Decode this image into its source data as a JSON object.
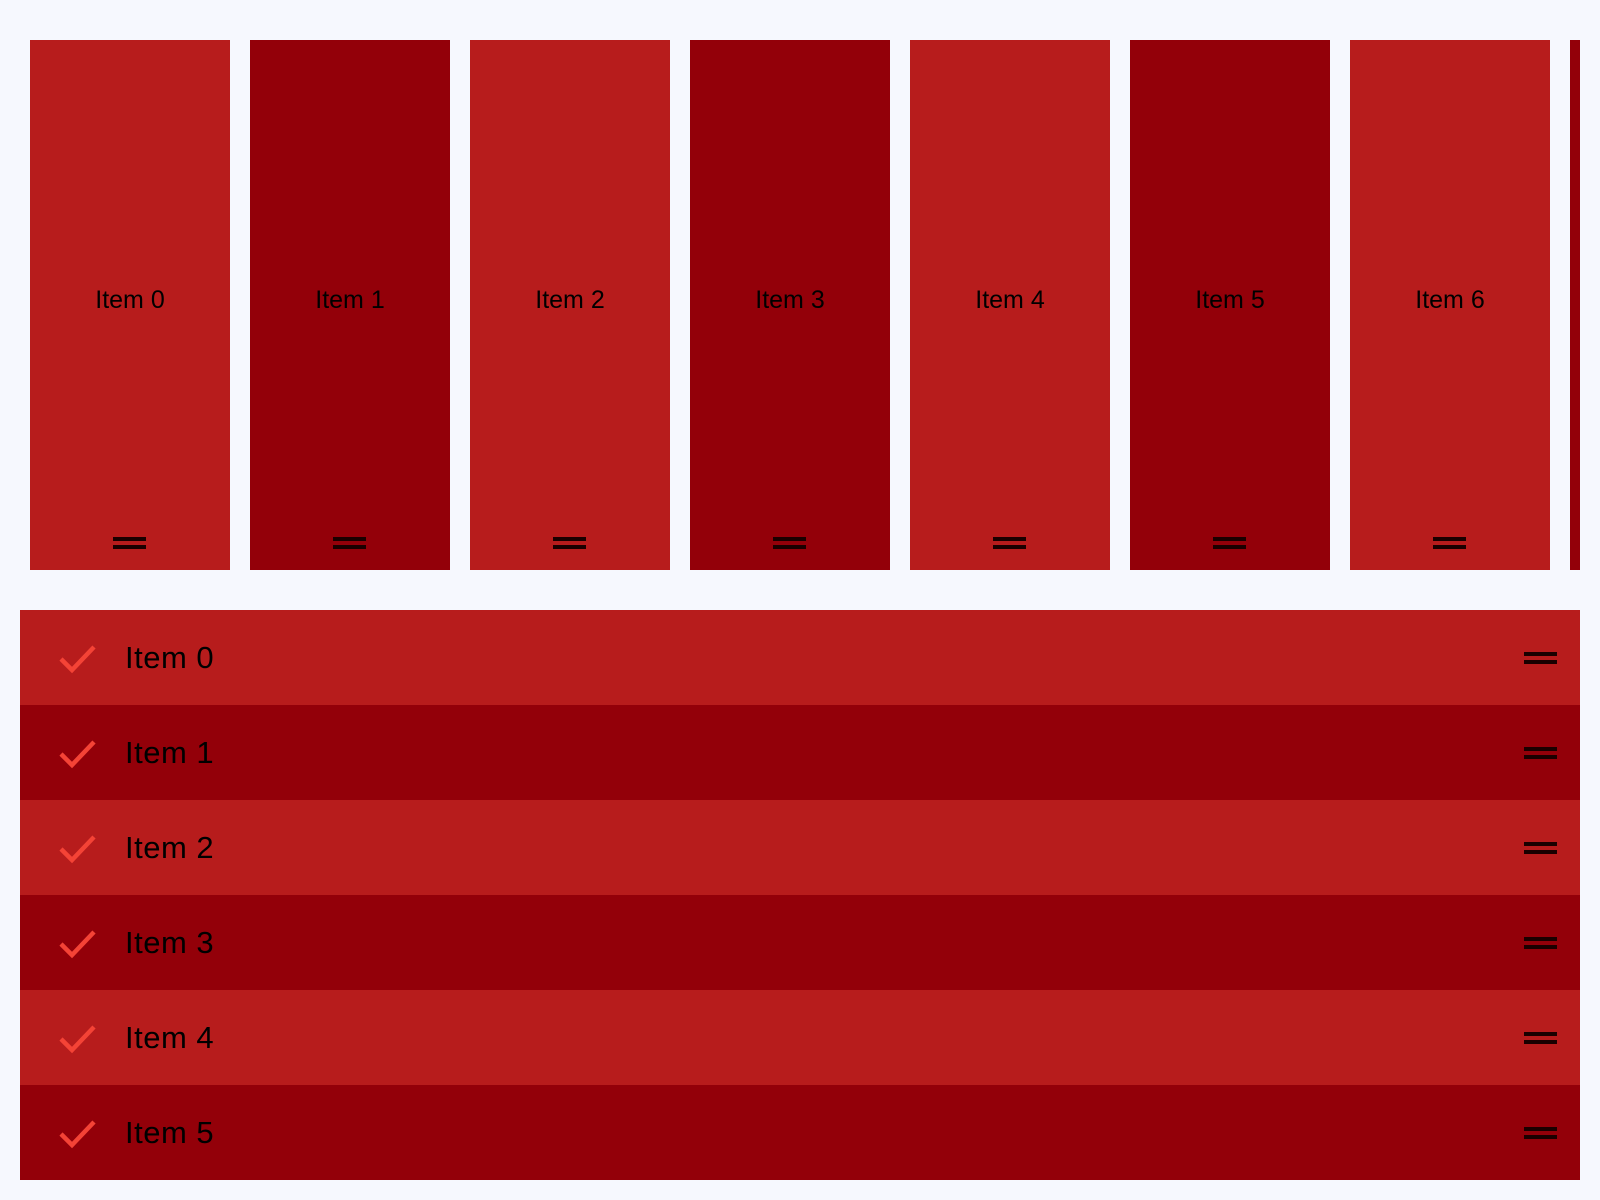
{
  "colors": {
    "light": "#b71c1c",
    "dark": "#930009",
    "check": "#f44336",
    "background": "#f6f8fe"
  },
  "horizontal_list": {
    "items": [
      {
        "label": "Item 0",
        "icon": "drag-handle-icon"
      },
      {
        "label": "Item 1",
        "icon": "drag-handle-icon"
      },
      {
        "label": "Item 2",
        "icon": "drag-handle-icon"
      },
      {
        "label": "Item 3",
        "icon": "drag-handle-icon"
      },
      {
        "label": "Item 4",
        "icon": "drag-handle-icon"
      },
      {
        "label": "Item 5",
        "icon": "drag-handle-icon"
      },
      {
        "label": "Item 6",
        "icon": "drag-handle-icon"
      },
      {
        "label": "",
        "icon": "drag-handle-icon"
      }
    ]
  },
  "vertical_list": {
    "items": [
      {
        "label": "Item 0",
        "checked": true
      },
      {
        "label": "Item 1",
        "checked": true
      },
      {
        "label": "Item 2",
        "checked": true
      },
      {
        "label": "Item 3",
        "checked": true
      },
      {
        "label": "Item 4",
        "checked": true
      },
      {
        "label": "Item 5",
        "checked": true
      }
    ]
  }
}
